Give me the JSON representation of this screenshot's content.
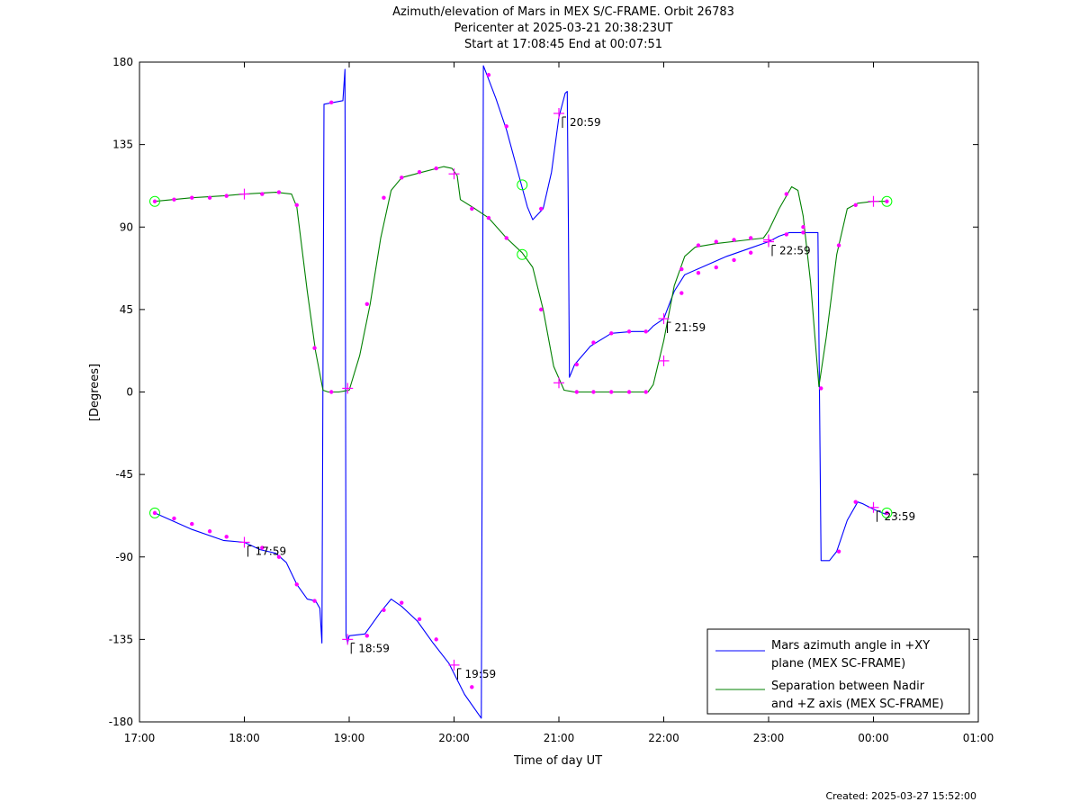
{
  "title_lines": [
    "Azimuth/elevation of Mars in MEX S/C-FRAME.  Orbit 26783",
    "Pericenter at 2025-03-21 20:38:23UT",
    "Start at 17:08:45 End at 00:07:51"
  ],
  "footer": "Created: 2025-03-27 15:52:00",
  "chart_data": {
    "type": "line",
    "xlabel": "Time of day UT",
    "ylabel": "[Degrees]",
    "x_unit": "hours of day UT (values above 24 are after midnight)",
    "xlim": [
      17,
      25
    ],
    "ylim": [
      -180,
      180
    ],
    "x_ticks": [
      17,
      18,
      19,
      20,
      21,
      22,
      23,
      24,
      25
    ],
    "x_tick_labels": [
      "17:00",
      "18:00",
      "19:00",
      "20:00",
      "21:00",
      "22:00",
      "23:00",
      "00:00",
      "01:00"
    ],
    "y_ticks": [
      180,
      135,
      90,
      45,
      0,
      -45,
      -90,
      -135,
      -180
    ],
    "y_tick_labels": [
      "180",
      "135",
      "90",
      "45",
      "0",
      "-45",
      "-90",
      "-135",
      "-180"
    ],
    "grid": false,
    "legend_position": "bottom-right",
    "series": [
      {
        "name": "Mars azimuth angle in +XY plane (MEX SC-FRAME)",
        "legend_lines": [
          "Mars azimuth angle in +XY",
          "plane (MEX SC-FRAME)"
        ],
        "color": "#0000ff",
        "points": [
          [
            17.146,
            -66
          ],
          [
            17.5,
            -75
          ],
          [
            17.8,
            -81
          ],
          [
            18.0,
            -82
          ],
          [
            18.15,
            -86
          ],
          [
            18.3,
            -88
          ],
          [
            18.4,
            -93
          ],
          [
            18.5,
            -105
          ],
          [
            18.6,
            -113
          ],
          [
            18.68,
            -114
          ],
          [
            18.72,
            -118
          ],
          [
            18.74,
            -137
          ],
          [
            18.76,
            157
          ],
          [
            18.85,
            158
          ],
          [
            18.94,
            159
          ],
          [
            18.96,
            176
          ],
          [
            18.97,
            -133
          ],
          [
            18.985,
            -137
          ],
          [
            19.0,
            -133
          ],
          [
            19.15,
            -132
          ],
          [
            19.3,
            -120
          ],
          [
            19.4,
            -113
          ],
          [
            19.5,
            -117
          ],
          [
            19.65,
            -125
          ],
          [
            19.8,
            -137
          ],
          [
            19.95,
            -148
          ],
          [
            20.1,
            -165
          ],
          [
            20.26,
            -178
          ],
          [
            20.28,
            178
          ],
          [
            20.3,
            175
          ],
          [
            20.4,
            160
          ],
          [
            20.5,
            143
          ],
          [
            20.6,
            122
          ],
          [
            20.7,
            101
          ],
          [
            20.75,
            94
          ],
          [
            20.85,
            100
          ],
          [
            20.93,
            120
          ],
          [
            21.0,
            150
          ],
          [
            21.06,
            163
          ],
          [
            21.08,
            164
          ],
          [
            21.09,
            95
          ],
          [
            21.1,
            8
          ],
          [
            21.15,
            15
          ],
          [
            21.3,
            25
          ],
          [
            21.5,
            32
          ],
          [
            21.7,
            33
          ],
          [
            21.85,
            33
          ],
          [
            21.9,
            36
          ],
          [
            22.0,
            40
          ],
          [
            22.1,
            55
          ],
          [
            22.2,
            64
          ],
          [
            22.4,
            69
          ],
          [
            22.6,
            74
          ],
          [
            22.8,
            78
          ],
          [
            23.0,
            82
          ],
          [
            23.1,
            85
          ],
          [
            23.2,
            87
          ],
          [
            23.35,
            87
          ],
          [
            23.47,
            87
          ],
          [
            23.49,
            -30
          ],
          [
            23.5,
            -92
          ],
          [
            23.58,
            -92
          ],
          [
            23.65,
            -87
          ],
          [
            23.75,
            -70
          ],
          [
            23.85,
            -60
          ],
          [
            23.9,
            -61
          ],
          [
            24.0,
            -64
          ],
          [
            24.128,
            -67
          ]
        ]
      },
      {
        "name": "Separation between Nadir and +Z axis (MEX SC-FRAME)",
        "legend_lines": [
          "Separation between Nadir",
          "and +Z axis (MEX SC-FRAME)"
        ],
        "color": "#008000",
        "points": [
          [
            17.146,
            104
          ],
          [
            17.5,
            106
          ],
          [
            17.8,
            107
          ],
          [
            18.0,
            108
          ],
          [
            18.3,
            109
          ],
          [
            18.45,
            108
          ],
          [
            18.5,
            101
          ],
          [
            18.6,
            55
          ],
          [
            18.68,
            22
          ],
          [
            18.75,
            1
          ],
          [
            18.8,
            0
          ],
          [
            18.9,
            0
          ],
          [
            19.0,
            1
          ],
          [
            19.1,
            20
          ],
          [
            19.2,
            48
          ],
          [
            19.3,
            84
          ],
          [
            19.4,
            110
          ],
          [
            19.5,
            117
          ],
          [
            19.7,
            120
          ],
          [
            19.9,
            123
          ],
          [
            19.98,
            122
          ],
          [
            20.03,
            118
          ],
          [
            20.06,
            105
          ],
          [
            20.2,
            100
          ],
          [
            20.33,
            95
          ],
          [
            20.5,
            84
          ],
          [
            20.65,
            76
          ],
          [
            20.75,
            68
          ],
          [
            20.85,
            45
          ],
          [
            20.95,
            14
          ],
          [
            21.05,
            1
          ],
          [
            21.15,
            0
          ],
          [
            21.85,
            0
          ],
          [
            21.9,
            4
          ],
          [
            22.0,
            28
          ],
          [
            22.1,
            58
          ],
          [
            22.2,
            74
          ],
          [
            22.3,
            79
          ],
          [
            22.5,
            81
          ],
          [
            22.8,
            83
          ],
          [
            22.95,
            84
          ],
          [
            23.0,
            88
          ],
          [
            23.1,
            100
          ],
          [
            23.22,
            112
          ],
          [
            23.28,
            110
          ],
          [
            23.33,
            96
          ],
          [
            23.4,
            60
          ],
          [
            23.48,
            3
          ],
          [
            23.55,
            30
          ],
          [
            23.65,
            75
          ],
          [
            23.75,
            100
          ],
          [
            23.85,
            103
          ],
          [
            24.0,
            104
          ],
          [
            24.128,
            104
          ]
        ]
      }
    ],
    "markers": {
      "dots": [
        [
          17.146,
          104
        ],
        [
          17.33,
          105
        ],
        [
          17.5,
          106
        ],
        [
          17.67,
          106
        ],
        [
          17.83,
          107
        ],
        [
          18.17,
          108
        ],
        [
          18.33,
          109
        ],
        [
          18.5,
          102
        ],
        [
          18.67,
          24
        ],
        [
          18.83,
          0
        ],
        [
          19.17,
          48
        ],
        [
          19.33,
          106
        ],
        [
          19.5,
          117
        ],
        [
          19.67,
          120
        ],
        [
          19.83,
          122
        ],
        [
          20.17,
          100
        ],
        [
          20.33,
          95
        ],
        [
          20.5,
          84
        ],
        [
          20.83,
          45
        ],
        [
          21.17,
          0
        ],
        [
          21.33,
          0
        ],
        [
          21.5,
          0
        ],
        [
          21.67,
          0
        ],
        [
          21.83,
          0
        ],
        [
          22.17,
          67
        ],
        [
          22.33,
          80
        ],
        [
          22.5,
          82
        ],
        [
          22.67,
          83
        ],
        [
          22.83,
          84
        ],
        [
          23.17,
          108
        ],
        [
          23.33,
          90
        ],
        [
          23.5,
          2
        ],
        [
          23.67,
          80
        ],
        [
          23.83,
          102
        ],
        [
          24.128,
          104
        ],
        [
          17.146,
          -66
        ],
        [
          17.33,
          -69
        ],
        [
          17.5,
          -72
        ],
        [
          17.67,
          -76
        ],
        [
          17.83,
          -79
        ],
        [
          18.17,
          -85
        ],
        [
          18.33,
          -90
        ],
        [
          18.5,
          -105
        ],
        [
          18.67,
          -114
        ],
        [
          18.83,
          158
        ],
        [
          19.17,
          -133
        ],
        [
          19.33,
          -119
        ],
        [
          19.5,
          -115
        ],
        [
          19.67,
          -124
        ],
        [
          19.83,
          -135
        ],
        [
          20.17,
          -161
        ],
        [
          20.33,
          173
        ],
        [
          20.5,
          145
        ],
        [
          20.83,
          100
        ],
        [
          21.17,
          15
        ],
        [
          21.33,
          27
        ],
        [
          21.5,
          32
        ],
        [
          21.67,
          33
        ],
        [
          21.83,
          33
        ],
        [
          22.17,
          54
        ],
        [
          22.33,
          65
        ],
        [
          22.5,
          68
        ],
        [
          22.67,
          72
        ],
        [
          22.83,
          76
        ],
        [
          23.17,
          86
        ],
        [
          23.33,
          87
        ],
        [
          23.67,
          -87
        ],
        [
          23.83,
          -60
        ],
        [
          24.128,
          -66
        ]
      ],
      "crosses": [
        [
          18.0,
          108
        ],
        [
          18.0,
          -82
        ],
        [
          18.985,
          2
        ],
        [
          18.985,
          -135
        ],
        [
          20.0,
          119
        ],
        [
          20.0,
          -149
        ],
        [
          21.0,
          5
        ],
        [
          21.0,
          152
        ],
        [
          22.0,
          17
        ],
        [
          22.0,
          40
        ],
        [
          23.0,
          83
        ],
        [
          23.0,
          82
        ],
        [
          24.0,
          104
        ],
        [
          24.0,
          -63
        ]
      ],
      "circles": [
        [
          17.146,
          104
        ],
        [
          17.146,
          -66
        ],
        [
          20.65,
          75
        ],
        [
          20.65,
          113
        ],
        [
          24.128,
          104
        ],
        [
          24.128,
          -66
        ]
      ]
    },
    "annotations": [
      {
        "x": 18.0,
        "y": -82,
        "text": "17:59"
      },
      {
        "x": 18.985,
        "y": -135,
        "text": "18:59"
      },
      {
        "x": 20.0,
        "y": -149,
        "text": "19:59"
      },
      {
        "x": 21.0,
        "y": 152,
        "text": "20:59"
      },
      {
        "x": 22.0,
        "y": 40,
        "text": "21:59"
      },
      {
        "x": 23.0,
        "y": 82,
        "text": "22:59"
      },
      {
        "x": 24.0,
        "y": -63,
        "text": "23:59"
      }
    ]
  }
}
